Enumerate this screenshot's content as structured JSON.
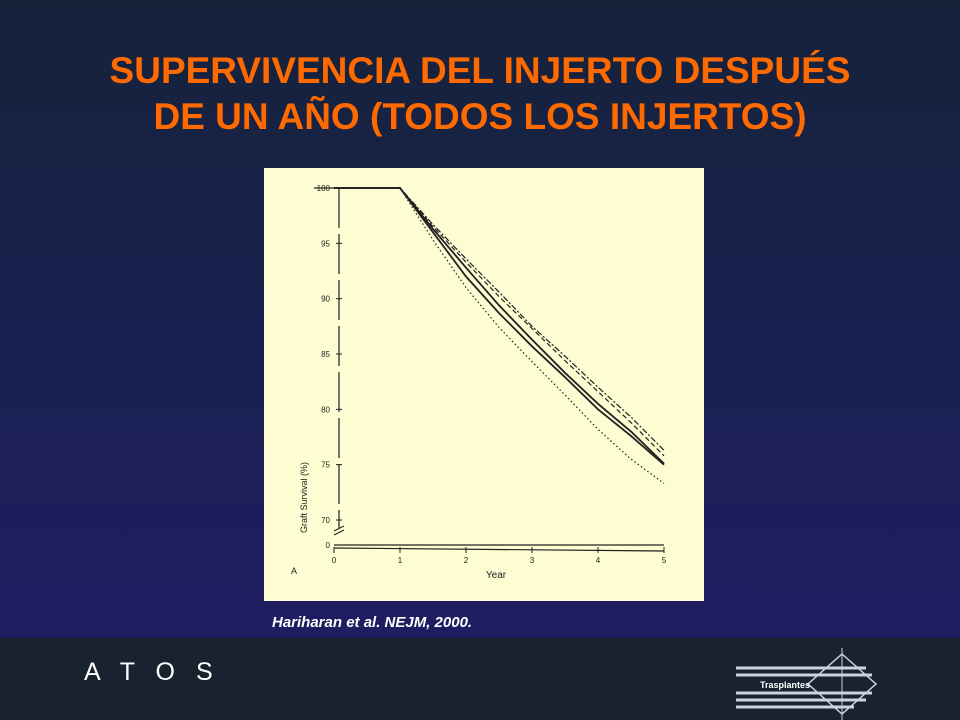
{
  "slide": {
    "title_line1": "SUPERVIVENCIA DEL INJERTO DESPUÉS",
    "title_line2": "DE UN AÑO (TODOS LOS INJERTOS)",
    "citation": "Hariharan et al. NEJM, 2000."
  },
  "footer": {
    "brand": "A T O S",
    "logo_text": "Trasplantes"
  },
  "colors": {
    "title": "#ff6a00",
    "chart_background": "#fdfcd2",
    "ink": "#222222"
  },
  "chart_data": {
    "type": "line",
    "panel_label": "A",
    "xlabel": "Year",
    "ylabel": "Graft Survival (%)",
    "x_ticks": [
      0,
      1,
      2,
      3,
      4,
      5
    ],
    "y_ticks": [
      100,
      95,
      90,
      85,
      80,
      75,
      70
    ],
    "y_break_label": "0",
    "xlim": [
      0,
      5
    ],
    "ylim": [
      70,
      100
    ],
    "axis_break": true,
    "grid": false,
    "series": [
      {
        "style": "solid",
        "x": [
          0,
          1,
          1.5,
          2,
          2.5,
          3,
          3.5,
          4,
          4.5,
          5
        ],
        "y": [
          100,
          100,
          96.0,
          92.0,
          88.7,
          85.7,
          82.9,
          80.0,
          77.6,
          75.0
        ]
      },
      {
        "style": "solid",
        "x": [
          0,
          1,
          1.5,
          2,
          2.5,
          3,
          3.5,
          4,
          4.5,
          5
        ],
        "y": [
          100,
          100,
          96.3,
          92.8,
          89.4,
          86.3,
          83.3,
          80.5,
          78.0,
          75.1
        ]
      },
      {
        "style": "dashed",
        "x": [
          0,
          1,
          1.5,
          2,
          2.5,
          3,
          3.5,
          4,
          4.5,
          5
        ],
        "y": [
          100,
          100,
          96.5,
          93.3,
          90.2,
          87.3,
          84.4,
          81.6,
          78.8,
          75.8
        ]
      },
      {
        "style": "dashdot",
        "x": [
          0,
          1,
          1.5,
          2,
          2.5,
          3,
          3.5,
          4,
          4.5,
          5
        ],
        "y": [
          100,
          100,
          96.7,
          93.6,
          90.6,
          87.5,
          84.8,
          82.0,
          79.3,
          76.3
        ]
      },
      {
        "style": "dotted",
        "x": [
          0,
          1,
          1.5,
          2,
          2.5,
          3,
          3.5,
          4,
          4.5,
          5
        ],
        "y": [
          100,
          100,
          95.3,
          91.0,
          87.4,
          84.3,
          81.3,
          78.2,
          75.5,
          73.3
        ]
      }
    ],
    "baseline_series": {
      "style": "solid",
      "x": [
        0,
        5
      ],
      "y": [
        0,
        0
      ]
    }
  }
}
